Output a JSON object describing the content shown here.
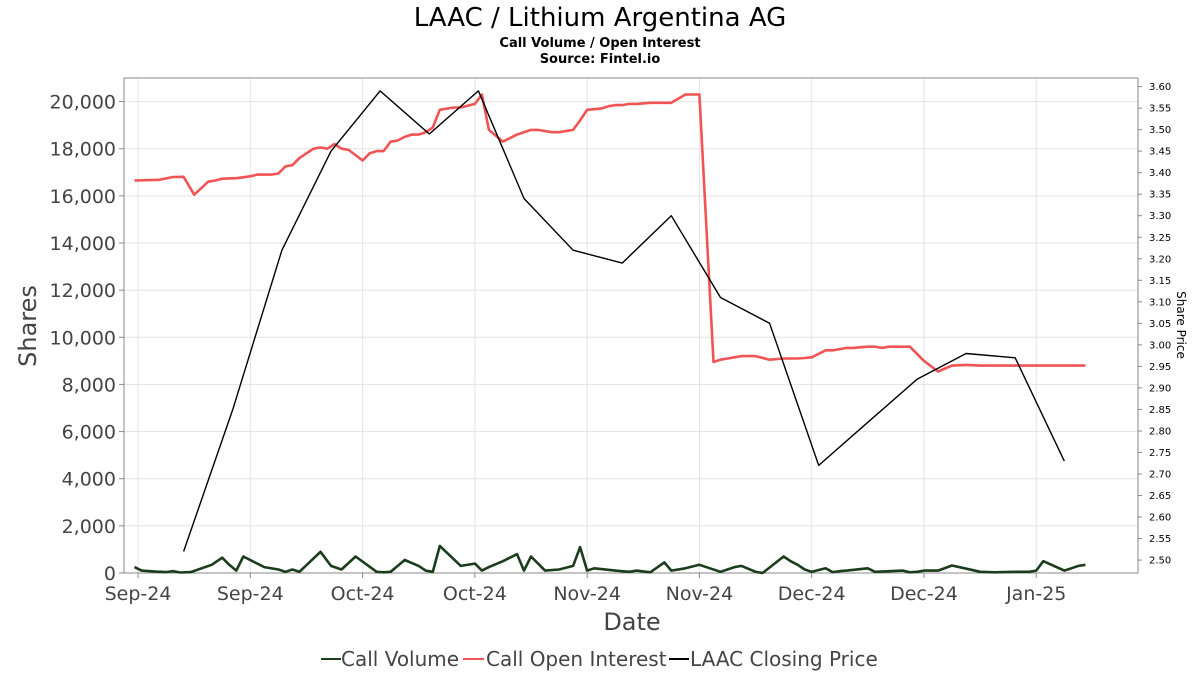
{
  "chart_data": {
    "type": "line",
    "title": "LAAC / Lithium Argentina AG",
    "subtitle_lines": [
      "Call Volume / Open Interest",
      "Source: Fintel.io"
    ],
    "xlabel": "Date",
    "ylabel": "Shares",
    "y2label": "Share Price",
    "ylim": [
      0,
      21000
    ],
    "y2lim": [
      2.47,
      3.62
    ],
    "xlim": [
      -4,
      285
    ],
    "grid": true,
    "legend_placement": "bottom-center",
    "x_units": "days since first tick",
    "x_ticks": [
      {
        "x": 0,
        "label": "Sep-24"
      },
      {
        "x": 32,
        "label": "Sep-24"
      },
      {
        "x": 64,
        "label": "Oct-24"
      },
      {
        "x": 96,
        "label": "Oct-24"
      },
      {
        "x": 128,
        "label": "Nov-24"
      },
      {
        "x": 160,
        "label": "Nov-24"
      },
      {
        "x": 192,
        "label": "Dec-24"
      },
      {
        "x": 224,
        "label": "Dec-24"
      },
      {
        "x": 256,
        "label": "Jan-25"
      }
    ],
    "y_ticks": [
      0,
      2000,
      4000,
      6000,
      8000,
      10000,
      12000,
      14000,
      16000,
      18000,
      20000
    ],
    "y_tick_labels": [
      "0",
      "2,000",
      "4,000",
      "6,000",
      "8,000",
      "10,000",
      "12,000",
      "14,000",
      "16,000",
      "18,000",
      "20,000"
    ],
    "y2_ticks": [
      2.5,
      2.55,
      2.6,
      2.65,
      2.7,
      2.75,
      2.8,
      2.85,
      2.9,
      2.95,
      3.0,
      3.05,
      3.1,
      3.15,
      3.2,
      3.25,
      3.3,
      3.35,
      3.4,
      3.45,
      3.5,
      3.55,
      3.6
    ],
    "y2_tick_labels": [
      "2.50",
      "2.55",
      "2.60",
      "2.65",
      "2.70",
      "2.75",
      "2.80",
      "2.85",
      "2.90",
      "2.95",
      "3.00",
      "3.05",
      "3.10",
      "3.15",
      "3.20",
      "3.25",
      "3.30",
      "3.35",
      "3.40",
      "3.45",
      "3.50",
      "3.55",
      "3.60"
    ],
    "series": [
      {
        "name": "Call Volume",
        "color": "#1b3d1d",
        "axis": "left",
        "x": [
          -1,
          1,
          5,
          8,
          10,
          12,
          15,
          21,
          24,
          26,
          28,
          30,
          36,
          40,
          42,
          44,
          46,
          52,
          55,
          58,
          62,
          68,
          70,
          72,
          76,
          80,
          82,
          84,
          86,
          92,
          96,
          98,
          100,
          104,
          108,
          110,
          112,
          116,
          120,
          124,
          126,
          128,
          130,
          136,
          140,
          142,
          146,
          150,
          152,
          156,
          160,
          166,
          168,
          170,
          172,
          176,
          178,
          184,
          186,
          188,
          190,
          192,
          196,
          198,
          200,
          202,
          208,
          210,
          218,
          220,
          222,
          224,
          228,
          232,
          238,
          240,
          244,
          250,
          254,
          256,
          258,
          264,
          266,
          268,
          270
        ],
        "values": [
          250,
          100,
          60,
          40,
          80,
          20,
          40,
          350,
          650,
          350,
          100,
          700,
          250,
          150,
          50,
          150,
          50,
          900,
          300,
          150,
          700,
          50,
          30,
          50,
          550,
          300,
          100,
          50,
          1150,
          300,
          400,
          100,
          250,
          500,
          800,
          100,
          700,
          100,
          150,
          300,
          1100,
          100,
          200,
          100,
          50,
          100,
          30,
          450,
          100,
          200,
          350,
          50,
          150,
          250,
          300,
          50,
          0,
          700,
          500,
          350,
          150,
          50,
          200,
          40,
          80,
          100,
          200,
          50,
          100,
          30,
          50,
          100,
          100,
          320,
          120,
          50,
          30,
          50,
          50,
          100,
          500,
          100,
          200,
          300,
          350
        ]
      },
      {
        "name": "Call Open Interest",
        "color": "#f05454",
        "axis": "left",
        "x": [
          -1,
          6,
          10,
          13,
          16,
          20,
          22,
          24,
          28,
          32,
          34,
          38,
          40,
          42,
          44,
          46,
          50,
          52,
          54,
          56,
          58,
          60,
          64,
          66,
          68,
          70,
          72,
          74,
          76,
          78,
          80,
          82,
          84,
          86,
          88,
          90,
          92,
          96,
          98,
          100,
          104,
          108,
          110,
          112,
          114,
          118,
          120,
          124,
          126,
          128,
          132,
          134,
          136,
          138,
          140,
          142,
          146,
          150,
          152,
          156,
          160,
          164,
          166,
          168,
          170,
          172,
          176,
          180,
          184,
          186,
          188,
          190,
          192,
          196,
          198,
          200,
          202,
          204,
          206,
          208,
          210,
          212,
          214,
          216,
          218,
          220,
          224,
          228,
          232,
          236,
          240,
          244,
          248,
          252,
          254,
          256,
          258,
          260,
          262,
          264,
          268,
          270
        ],
        "values": [
          16650,
          16680,
          16800,
          16810,
          16050,
          16600,
          16650,
          16730,
          16750,
          16830,
          16900,
          16900,
          16950,
          17250,
          17300,
          17600,
          18000,
          18050,
          18000,
          18200,
          18000,
          17950,
          17500,
          17800,
          17900,
          17900,
          18300,
          18350,
          18500,
          18600,
          18600,
          18700,
          18900,
          19650,
          19700,
          19750,
          19750,
          19900,
          20300,
          18800,
          18300,
          18600,
          18700,
          18800,
          18800,
          18700,
          18700,
          18800,
          19200,
          19650,
          19700,
          19800,
          19850,
          19850,
          19900,
          19900,
          19950,
          19950,
          19950,
          20300,
          20300,
          8950,
          9050,
          9100,
          9150,
          9200,
          9200,
          9050,
          9100,
          9100,
          9100,
          9120,
          9150,
          9450,
          9450,
          9500,
          9550,
          9550,
          9580,
          9600,
          9600,
          9550,
          9600,
          9600,
          9600,
          9600,
          9000,
          8550,
          8800,
          8830,
          8800,
          8800,
          8800,
          8800,
          8800,
          8800,
          8800,
          8800,
          8800,
          8800,
          8800,
          8800
        ]
      },
      {
        "name": "LAAC Closing Price",
        "color": "#000000",
        "axis": "right",
        "x": [
          13,
          27,
          41,
          55,
          69,
          83,
          97,
          110,
          124,
          138,
          152,
          166,
          180,
          194,
          208,
          222,
          236,
          250,
          264
        ],
        "values": [
          2.52,
          2.85,
          3.22,
          3.45,
          3.59,
          3.49,
          3.59,
          3.34,
          3.22,
          3.19,
          3.3,
          3.11,
          3.05,
          2.72,
          2.82,
          2.92,
          2.98,
          2.97,
          2.73
        ]
      }
    ]
  }
}
